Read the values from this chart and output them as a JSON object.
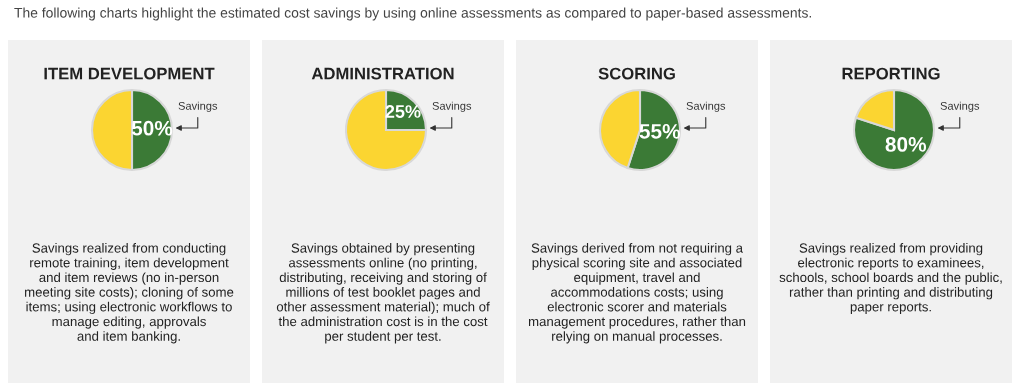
{
  "chart_data": [
    {
      "type": "pie",
      "title": "ITEM DEVELOPMENT",
      "categories": [
        "Savings",
        null
      ],
      "values": [
        50,
        50
      ],
      "colors": [
        "#3b7a36",
        "#fbd531"
      ],
      "value_labels": [
        "50%",
        null
      ],
      "annotations": [
        "The following charts highlight the estimated cost savings by using online assessments as compared to paper-based assessments.",
        "Savings realized from conducting\nremote training, item development\nand item reviews (no in-person\nmeeting site costs); cloning of some\nitems; using electronic workflows to\nmanage editing, approvals\nand item banking."
      ]
    },
    {
      "type": "pie",
      "title": "ADMINISTRATION",
      "categories": [
        "Savings",
        null
      ],
      "values": [
        25,
        75
      ],
      "colors": [
        "#3b7a36",
        "#fbd531"
      ],
      "value_labels": [
        "25%",
        null
      ],
      "annotations": [
        "Savings obtained by presenting\nassessments online (no printing,\ndistributing, receiving and storing of\nmillions of test booklet pages and\nother assessment material); much of\nthe administration cost is in the cost\nper student per test."
      ]
    },
    {
      "type": "pie",
      "title": "SCORING",
      "categories": [
        "Savings",
        null
      ],
      "values": [
        55,
        45
      ],
      "colors": [
        "#3b7a36",
        "#fbd531"
      ],
      "value_labels": [
        "55%",
        null
      ],
      "annotations": [
        "Savings derived from not requiring a\nphysical scoring site and associated\nequipment, travel and\naccommodations costs; using\nelectronic scorer and materials\nmanagement procedures, rather than\nrelying on manual processes."
      ]
    },
    {
      "type": "pie",
      "title": "REPORTING",
      "categories": [
        "Savings",
        null
      ],
      "values": [
        80,
        20
      ],
      "colors": [
        "#3b7a36",
        "#fbd531"
      ],
      "value_labels": [
        "80%",
        null
      ],
      "annotations": [
        "Savings realized from providing\nelectronic reports to examinees,\nschools, school boards and the public,\nrather than printing and distributing\npaper reports."
      ]
    }
  ]
}
